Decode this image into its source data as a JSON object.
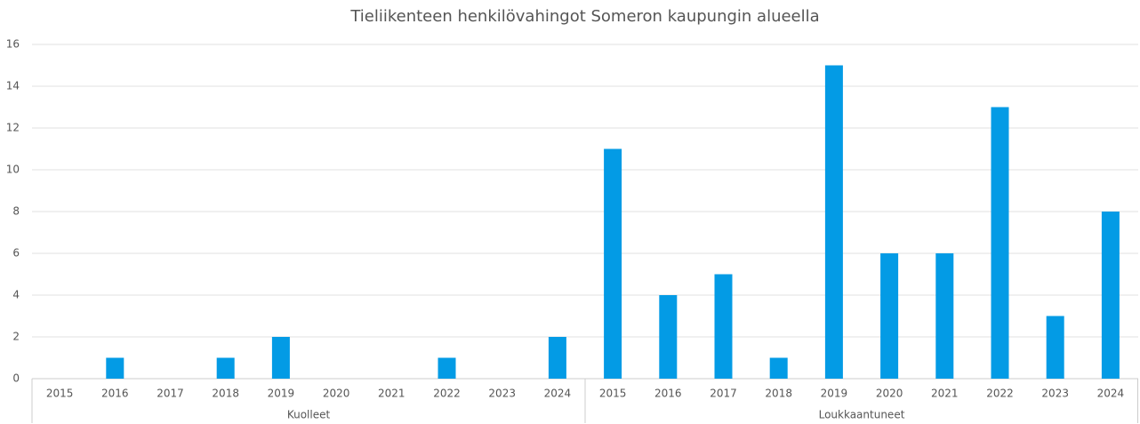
{
  "chart_data": {
    "type": "bar",
    "title": "Tieliikenteen henkilövahingot Someron kaupungin alueella",
    "color": "#039be5",
    "groups": [
      {
        "name": "Kuolleet",
        "categories": [
          "2015",
          "2016",
          "2017",
          "2018",
          "2019",
          "2020",
          "2021",
          "2022",
          "2023",
          "2024"
        ],
        "values": [
          0,
          1,
          0,
          1,
          2,
          0,
          0,
          1,
          0,
          2
        ]
      },
      {
        "name": "Loukkaantuneet",
        "categories": [
          "2015",
          "2016",
          "2017",
          "2018",
          "2019",
          "2020",
          "2021",
          "2022",
          "2023",
          "2024"
        ],
        "values": [
          11,
          4,
          5,
          1,
          15,
          6,
          6,
          13,
          3,
          8
        ]
      }
    ],
    "ylim": [
      0,
      16
    ],
    "yticks": [
      0,
      2,
      4,
      6,
      8,
      10,
      12,
      14,
      16
    ],
    "grid": true
  }
}
